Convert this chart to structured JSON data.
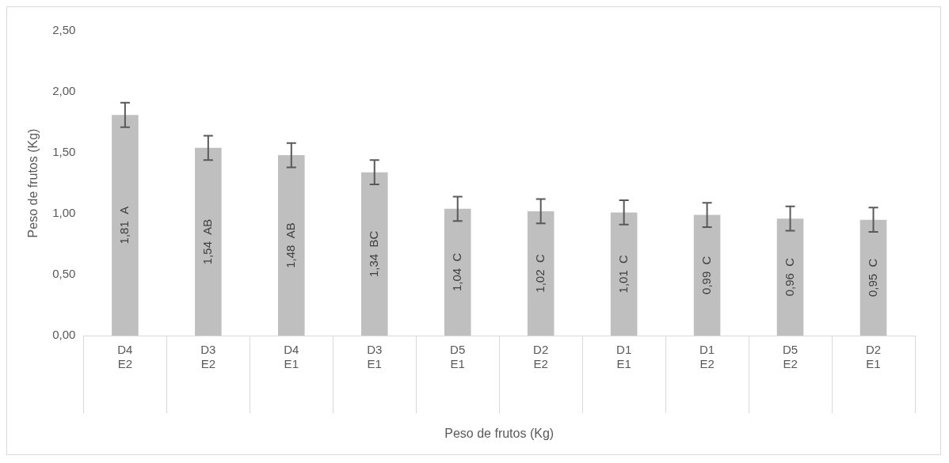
{
  "chart_data": {
    "type": "bar",
    "xlabel": "Peso de frutos (Kg)",
    "ylabel": "Peso de frutos (Kg)",
    "categories": [
      "D4\nE2",
      "D3\nE2",
      "D4\nE1",
      "D3\nE1",
      "D5\nE1",
      "D2\nE2",
      "D1\nE1",
      "D1\nE2",
      "D5\nE2",
      "D2\nE1"
    ],
    "values": [
      1.81,
      1.54,
      1.48,
      1.34,
      1.04,
      1.02,
      1.01,
      0.99,
      0.96,
      0.95
    ],
    "errors": [
      0.1,
      0.1,
      0.1,
      0.1,
      0.1,
      0.1,
      0.1,
      0.1,
      0.1,
      0.1
    ],
    "value_labels": [
      "1,81  A",
      "1,54  AB",
      "1,48  AB",
      "1,34  BC",
      "1,04  C",
      "1,02  C",
      "1,01  C",
      "0,99  C",
      "0,96  C",
      "0,95  C"
    ],
    "color": "#bfbfbf",
    "ylim": [
      0,
      2.5
    ],
    "yticks": [
      {
        "value": 0,
        "label": "0,00"
      },
      {
        "value": 0.5,
        "label": "0,50"
      },
      {
        "value": 1,
        "label": "1,00"
      },
      {
        "value": 1.5,
        "label": "1,50"
      },
      {
        "value": 2,
        "label": "2,00"
      },
      {
        "value": 2.5,
        "label": "2,50"
      }
    ],
    "grid": false,
    "legend": false
  }
}
